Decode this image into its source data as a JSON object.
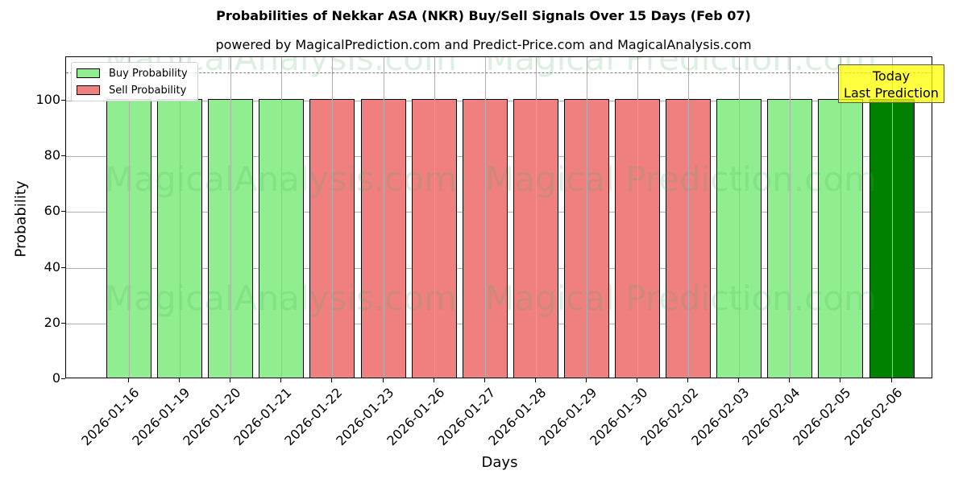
{
  "chart_data": {
    "type": "bar",
    "title": "Probabilities of Nekkar ASA (NKR) Buy/Sell Signals Over 15 Days (Feb 07)",
    "subtitle": "powered by MagicalPrediction.com and Predict-Price.com and MagicalAnalysis.com",
    "xlabel": "Days",
    "ylabel": "Probability",
    "ylim": [
      0,
      115
    ],
    "yticks": [
      0,
      20,
      40,
      60,
      80,
      100
    ],
    "grid": true,
    "legend_position": "upper left",
    "reference_line": {
      "y": 110,
      "style": "dashed",
      "color": "#808080"
    },
    "categories": [
      "2026-01-16",
      "2026-01-19",
      "2026-01-20",
      "2026-01-21",
      "2026-01-22",
      "2026-01-23",
      "2026-01-26",
      "2026-01-27",
      "2026-01-28",
      "2026-01-29",
      "2026-01-30",
      "2026-02-02",
      "2026-02-03",
      "2026-02-04",
      "2026-02-05",
      "2026-02-06"
    ],
    "signals": [
      "buy",
      "buy",
      "buy",
      "buy",
      "sell",
      "sell",
      "sell",
      "sell",
      "sell",
      "sell",
      "sell",
      "sell",
      "buy",
      "buy",
      "buy",
      "today"
    ],
    "values": [
      100,
      100,
      100,
      100,
      100,
      100,
      100,
      100,
      100,
      100,
      100,
      100,
      100,
      100,
      100,
      100
    ],
    "series": [
      {
        "name": "Buy Probability",
        "color": "#90ee90"
      },
      {
        "name": "Sell Probability",
        "color": "#f08080"
      }
    ],
    "today_color": "#008000",
    "annotation": {
      "line1": "Today",
      "line2": "Last Prediction",
      "background": "#ffff44"
    },
    "watermarks": [
      "MagicalAnalysis.com",
      "Magical Prediction.com"
    ]
  }
}
